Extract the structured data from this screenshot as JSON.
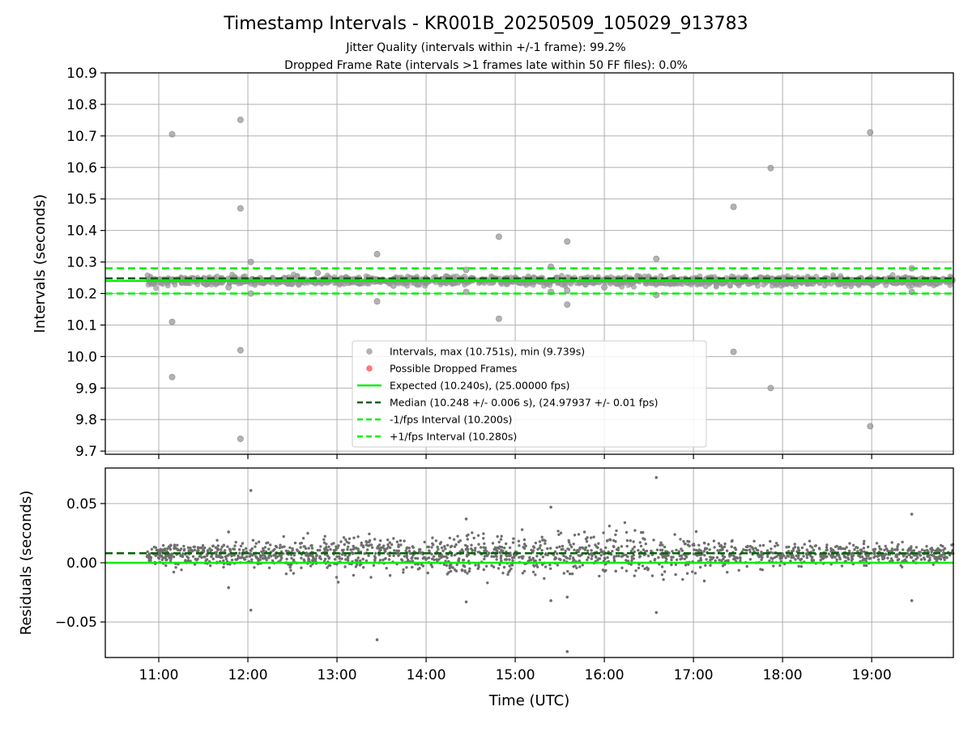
{
  "chart_data": [
    {
      "type": "scatter",
      "title": "Timestamp Intervals - KR001B_20250509_105029_913783",
      "subtitle_lines": [
        "Jitter Quality (intervals within +/-1 frame): 99.2%",
        "Dropped Frame Rate (intervals >1 frames late within 50 FF files): 0.0%"
      ],
      "xlabel": "",
      "ylabel": "Intervals (seconds)",
      "xlim": [
        "10:24",
        "19:55"
      ],
      "ylim": [
        9.69,
        10.9
      ],
      "x_tick_labels": [
        "11:00",
        "12:00",
        "13:00",
        "14:00",
        "15:00",
        "16:00",
        "17:00",
        "18:00",
        "19:00"
      ],
      "y_ticks": [
        "9.7",
        "9.8",
        "9.9",
        "10.0",
        "10.1",
        "10.2",
        "10.3",
        "10.4",
        "10.5",
        "10.6",
        "10.7",
        "10.8",
        "10.9"
      ],
      "grid": true,
      "legend": {
        "placement": "lower center",
        "entries": [
          {
            "label": "Intervals, max (10.751s), min (9.739s)",
            "marker": "dot",
            "color": "#a0a0a0"
          },
          {
            "label": "Possible Dropped Frames",
            "marker": "dot",
            "color": "#ff5a5a"
          },
          {
            "label": "Expected (10.240s), (25.00000 fps)",
            "marker": "solid",
            "color": "#00ee00"
          },
          {
            "label": "Median (10.248 +/- 0.006 s), (24.97937 +/- 0.01 fps)",
            "marker": "dashed",
            "color": "#006400"
          },
          {
            "label": "-1/fps Interval (10.200s)",
            "marker": "dashed",
            "color": "#00ee00"
          },
          {
            "label": "+1/fps Interval (10.280s)",
            "marker": "dashed",
            "color": "#00ee00"
          }
        ]
      },
      "hlines": {
        "expected": 10.24,
        "median": 10.248,
        "minus_1_fps": 10.2,
        "plus_1_fps": 10.28
      },
      "band_extent": {
        "x_start": "10:52",
        "x_end": "19:55",
        "center": 10.24,
        "spread": 0.012
      },
      "outliers": [
        {
          "x": "11:09",
          "y": 10.705
        },
        {
          "x": "11:09",
          "y": 10.11
        },
        {
          "x": "11:09",
          "y": 9.935
        },
        {
          "x": "11:55",
          "y": 10.751
        },
        {
          "x": "11:55",
          "y": 10.47
        },
        {
          "x": "11:55",
          "y": 10.02
        },
        {
          "x": "11:55",
          "y": 9.739
        },
        {
          "x": "12:02",
          "y": 10.3
        },
        {
          "x": "12:02",
          "y": 10.2
        },
        {
          "x": "12:47",
          "y": 10.265
        },
        {
          "x": "13:27",
          "y": 10.325
        },
        {
          "x": "13:27",
          "y": 10.175
        },
        {
          "x": "14:27",
          "y": 10.205
        },
        {
          "x": "14:27",
          "y": 10.275
        },
        {
          "x": "14:49",
          "y": 10.38
        },
        {
          "x": "14:49",
          "y": 10.12
        },
        {
          "x": "15:24",
          "y": 10.285
        },
        {
          "x": "15:24",
          "y": 10.205
        },
        {
          "x": "15:35",
          "y": 10.365
        },
        {
          "x": "15:35",
          "y": 10.165
        },
        {
          "x": "15:35",
          "y": 10.21
        },
        {
          "x": "16:35",
          "y": 10.31
        },
        {
          "x": "16:35",
          "y": 10.195
        },
        {
          "x": "17:27",
          "y": 10.475
        },
        {
          "x": "17:27",
          "y": 10.015
        },
        {
          "x": "17:52",
          "y": 10.598
        },
        {
          "x": "17:52",
          "y": 9.9
        },
        {
          "x": "18:59",
          "y": 10.711
        },
        {
          "x": "18:59",
          "y": 9.779
        },
        {
          "x": "19:27",
          "y": 10.28
        },
        {
          "x": "19:27",
          "y": 10.205
        },
        {
          "x": "11:47",
          "y": 10.22
        },
        {
          "x": "13:38",
          "y": 10.225
        },
        {
          "x": "16:00",
          "y": 10.22
        }
      ]
    },
    {
      "type": "scatter",
      "title": "",
      "xlabel": "Time (UTC)",
      "ylabel": "Residuals (seconds)",
      "xlim": [
        "10:24",
        "19:55"
      ],
      "ylim": [
        -0.08,
        0.08
      ],
      "x_tick_labels": [
        "11:00",
        "12:00",
        "13:00",
        "14:00",
        "15:00",
        "16:00",
        "17:00",
        "18:00",
        "19:00"
      ],
      "y_ticks": [
        "−0.05",
        "0.00",
        "0.05"
      ],
      "y_tick_values": [
        -0.05,
        0.0,
        0.05
      ],
      "grid": true,
      "hlines": {
        "zero": 0.0,
        "median": 0.008
      },
      "band_extent": {
        "x_start": "10:52",
        "x_end": "19:55",
        "center": 0.007
      },
      "outliers": [
        {
          "x": "12:02",
          "y": 0.061
        },
        {
          "x": "12:02",
          "y": -0.04
        },
        {
          "x": "11:47",
          "y": -0.021
        },
        {
          "x": "11:47",
          "y": 0.026
        },
        {
          "x": "13:27",
          "y": -0.065
        },
        {
          "x": "14:27",
          "y": 0.037
        },
        {
          "x": "14:27",
          "y": -0.033
        },
        {
          "x": "15:24",
          "y": 0.047
        },
        {
          "x": "15:24",
          "y": -0.032
        },
        {
          "x": "15:35",
          "y": -0.075
        },
        {
          "x": "15:35",
          "y": -0.029
        },
        {
          "x": "16:35",
          "y": 0.072
        },
        {
          "x": "16:35",
          "y": -0.042
        },
        {
          "x": "19:27",
          "y": 0.041
        },
        {
          "x": "19:27",
          "y": -0.032
        }
      ]
    }
  ],
  "colors": {
    "scatter_grey": "#999999",
    "residual_grey": "#6e6e6e",
    "expected_green": "#00ee00",
    "median_darkgreen": "#006400",
    "grid": "#b0b0b0"
  }
}
